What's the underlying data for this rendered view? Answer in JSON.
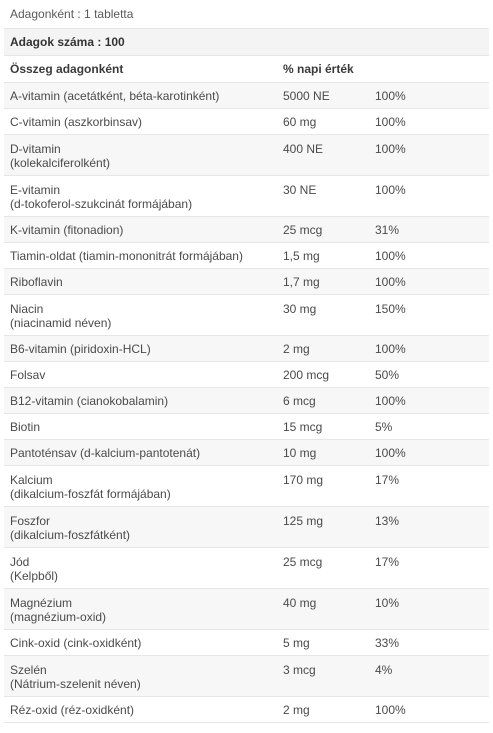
{
  "serving_size": "Adagonként : 1 tabletta",
  "servings_count": "Adagok száma : 100",
  "headers": {
    "amount": "Összeg adagonként",
    "dv": "% napi érték"
  },
  "rows": [
    {
      "name": "A-vitamin (acetátként, béta-karotinként)",
      "sub": "",
      "amount": "5000 NE",
      "dv": "100%"
    },
    {
      "name": "C-vitamin (aszkorbinsav)",
      "sub": "",
      "amount": "60 mg",
      "dv": "100%"
    },
    {
      "name": "D-vitamin",
      "sub": "(kolekalciferolként)",
      "amount": "400 NE",
      "dv": "100%"
    },
    {
      "name": "E-vitamin",
      "sub": "(d-tokoferol-szukcinát formájában)",
      "amount": "30 NE",
      "dv": "100%"
    },
    {
      "name": "K-vitamin (fitonadion)",
      "sub": "",
      "amount": "25 mcg",
      "dv": "31%"
    },
    {
      "name": "Tiamin-oldat (tiamin-mononitrát formájában)",
      "sub": "",
      "amount": "1,5 mg",
      "dv": "100%"
    },
    {
      "name": "Riboflavin",
      "sub": "",
      "amount": "1,7 mg",
      "dv": "100%"
    },
    {
      "name": "Niacin",
      "sub": "(niacinamid néven)",
      "amount": "30 mg",
      "dv": "150%"
    },
    {
      "name": "B6-vitamin (piridoxin-HCL)",
      "sub": "",
      "amount": "2 mg",
      "dv": "100%"
    },
    {
      "name": "Folsav",
      "sub": "",
      "amount": "200 mcg",
      "dv": "50%"
    },
    {
      "name": "B12-vitamin (cianokobalamin)",
      "sub": "",
      "amount": "6 mcg",
      "dv": "100%"
    },
    {
      "name": "Biotin",
      "sub": "",
      "amount": "15 mcg",
      "dv": "5%"
    },
    {
      "name": "Pantoténsav (d-kalcium-pantotenát)",
      "sub": "",
      "amount": "10 mg",
      "dv": "100%"
    },
    {
      "name": "Kalcium",
      "sub": "(dikalcium-foszfát formájában)",
      "amount": "170 mg",
      "dv": "17%"
    },
    {
      "name": "Foszfor",
      "sub": "(dikalcium-foszfátként)",
      "amount": "125 mg",
      "dv": "13%"
    },
    {
      "name": "Jód",
      "sub": "(Kelpből)",
      "amount": "25 mcg",
      "dv": "17%"
    },
    {
      "name": "Magnézium",
      "sub": "(magnézium-oxid)",
      "amount": "40 mg",
      "dv": "10%"
    },
    {
      "name": "Cink-oxid (cink-oxidként)",
      "sub": "",
      "amount": "5 mg",
      "dv": "33%"
    },
    {
      "name": "Szelén",
      "sub": "(Nátrium-szelenit néven)",
      "amount": "3 mcg",
      "dv": "4%"
    },
    {
      "name": "Réz-oxid (réz-oxidként)",
      "sub": "",
      "amount": "2 mg",
      "dv": "100%"
    }
  ]
}
